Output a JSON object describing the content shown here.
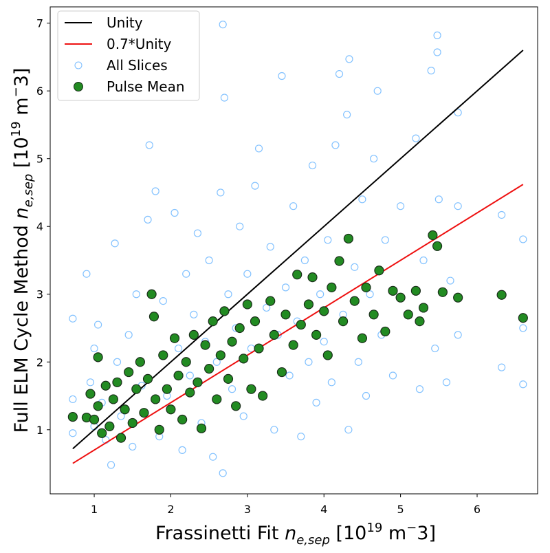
{
  "chart_data": {
    "type": "scatter",
    "xlabel": [
      "Frassinetti Fit ",
      "n",
      "e,sep",
      " [10",
      "19",
      " m",
      "−",
      "3]"
    ],
    "ylabel": [
      "Full ELM Cycle Method ",
      "n",
      "e,sep",
      " [10",
      "19",
      " m",
      "−",
      "3]"
    ],
    "xlim": [
      0.425,
      6.79
    ],
    "ylim": [
      0.054,
      7.24
    ],
    "xticks": [
      1,
      2,
      3,
      4,
      5,
      6
    ],
    "yticks": [
      1,
      2,
      3,
      4,
      5,
      6,
      7
    ],
    "legend": "upper left",
    "series": [
      {
        "name": "Unity",
        "mark": "line",
        "color": "#000000",
        "x": [
          0.72,
          6.6
        ],
        "values": [
          0.72,
          6.6
        ]
      },
      {
        "name": "0.7*Unity",
        "mark": "line",
        "color": "#ee1111",
        "x": [
          0.72,
          6.6
        ],
        "values": [
          0.504,
          4.62
        ]
      },
      {
        "name": "All Slices",
        "mark": "hollow",
        "color": "#1e90ff",
        "x": [
          0.72,
          0.72,
          0.72,
          0.72,
          0.9,
          0.95,
          1.0,
          1.0,
          1.05,
          1.1,
          1.15,
          1.22,
          1.27,
          1.3,
          1.35,
          1.45,
          1.5,
          1.55,
          1.62,
          1.7,
          1.72,
          1.8,
          1.85,
          1.9,
          1.95,
          2.05,
          2.1,
          2.15,
          2.2,
          2.25,
          2.3,
          2.35,
          2.4,
          2.45,
          2.5,
          2.55,
          2.6,
          2.65,
          2.68,
          2.68,
          2.7,
          2.75,
          2.8,
          2.85,
          2.9,
          2.95,
          3.0,
          3.05,
          3.1,
          3.15,
          3.2,
          3.25,
          3.3,
          3.35,
          3.4,
          3.45,
          3.5,
          3.55,
          3.6,
          3.65,
          3.7,
          3.75,
          3.8,
          3.85,
          3.9,
          3.95,
          4.0,
          4.05,
          4.1,
          4.15,
          4.2,
          4.25,
          4.3,
          4.32,
          4.33,
          4.4,
          4.45,
          4.5,
          4.55,
          4.6,
          4.65,
          4.7,
          4.75,
          4.8,
          4.9,
          5.0,
          5.1,
          5.2,
          5.25,
          5.3,
          5.4,
          5.45,
          5.48,
          5.48,
          5.5,
          5.6,
          5.65,
          5.75,
          5.75,
          5.75,
          6.32,
          6.32,
          6.32,
          6.6,
          6.6,
          6.6
        ],
        "values": [
          0.95,
          1.2,
          1.45,
          2.64,
          3.3,
          1.7,
          1.05,
          2.2,
          2.55,
          1.4,
          0.85,
          0.48,
          3.75,
          2.0,
          1.2,
          2.4,
          0.75,
          3.0,
          1.65,
          4.1,
          5.2,
          4.52,
          0.9,
          2.9,
          1.5,
          4.2,
          2.2,
          0.7,
          3.3,
          1.8,
          2.7,
          3.9,
          1.1,
          2.3,
          3.5,
          0.6,
          2.0,
          4.5,
          6.98,
          0.36,
          5.9,
          3.0,
          1.6,
          2.5,
          4.0,
          1.2,
          3.3,
          2.2,
          4.6,
          5.15,
          1.5,
          2.8,
          3.7,
          1.0,
          2.4,
          6.22,
          3.1,
          1.8,
          4.3,
          2.6,
          0.9,
          3.5,
          2.0,
          4.9,
          1.4,
          3.0,
          2.3,
          3.8,
          1.7,
          5.2,
          6.25,
          2.7,
          5.65,
          1.0,
          6.47,
          3.4,
          2.0,
          4.4,
          1.5,
          3.0,
          5.0,
          6.0,
          2.4,
          3.8,
          1.8,
          4.3,
          2.7,
          5.3,
          1.6,
          3.5,
          6.3,
          2.2,
          6.82,
          6.57,
          4.4,
          1.7,
          3.2,
          5.68,
          2.4,
          4.3,
          4.17,
          3.0,
          1.92,
          3.81,
          2.5,
          1.67
        ]
      },
      {
        "name": "Pulse Mean",
        "mark": "filled",
        "color": "#228b22",
        "edgecolor": "#1a2e1a",
        "x": [
          0.72,
          0.9,
          0.95,
          1.0,
          1.05,
          1.05,
          1.1,
          1.15,
          1.2,
          1.25,
          1.3,
          1.35,
          1.4,
          1.45,
          1.5,
          1.55,
          1.6,
          1.65,
          1.7,
          1.75,
          1.78,
          1.8,
          1.85,
          1.9,
          1.95,
          2.0,
          2.05,
          2.1,
          2.15,
          2.2,
          2.25,
          2.3,
          2.35,
          2.4,
          2.45,
          2.5,
          2.55,
          2.6,
          2.65,
          2.7,
          2.75,
          2.8,
          2.85,
          2.9,
          2.95,
          3.0,
          3.05,
          3.1,
          3.15,
          3.2,
          3.3,
          3.35,
          3.45,
          3.5,
          3.6,
          3.65,
          3.7,
          3.8,
          3.85,
          3.9,
          4.0,
          4.05,
          4.1,
          4.2,
          4.25,
          4.32,
          4.4,
          4.5,
          4.55,
          4.65,
          4.72,
          4.8,
          4.9,
          5.0,
          5.1,
          5.2,
          5.25,
          5.3,
          5.42,
          5.48,
          5.55,
          5.75,
          6.32,
          6.6
        ],
        "values": [
          1.19,
          1.18,
          1.53,
          1.15,
          2.07,
          1.35,
          0.95,
          1.65,
          1.05,
          1.45,
          1.7,
          0.88,
          1.3,
          1.85,
          1.1,
          1.6,
          2.0,
          1.25,
          1.75,
          3.0,
          2.67,
          1.45,
          1.0,
          2.1,
          1.6,
          1.3,
          2.35,
          1.8,
          1.15,
          2.0,
          1.55,
          2.4,
          1.7,
          1.02,
          2.25,
          1.9,
          2.6,
          1.45,
          2.1,
          2.75,
          1.75,
          2.3,
          1.35,
          2.5,
          2.05,
          2.85,
          1.6,
          2.6,
          2.2,
          1.5,
          2.9,
          2.4,
          1.85,
          2.7,
          2.25,
          3.29,
          2.55,
          2.85,
          3.25,
          2.4,
          2.75,
          2.1,
          3.1,
          3.49,
          2.6,
          3.82,
          2.9,
          2.35,
          3.1,
          2.7,
          3.35,
          2.45,
          3.05,
          2.95,
          2.7,
          3.05,
          2.6,
          2.8,
          3.87,
          3.71,
          3.03,
          2.95,
          2.99,
          2.65
        ]
      }
    ]
  }
}
